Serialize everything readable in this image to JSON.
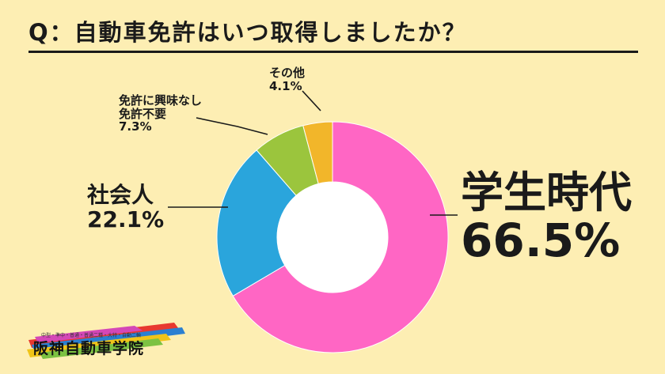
{
  "title": "Q：自動車免許はいつ取得しましたか？",
  "colors": {
    "background": "#fdeeb3",
    "学生時代": "#ff66c4",
    "社会人": "#2aa5dc",
    "免許に興味なし免許不要": "#9bc53d",
    "その他": "#f2b62a"
  },
  "chart_data": {
    "type": "pie",
    "style": "donut",
    "title": "Q：自動車免許はいつ取得しましたか？",
    "categories": [
      "学生時代",
      "社会人",
      "免許に興味なし 免許不要",
      "その他"
    ],
    "values": [
      66.5,
      22.1,
      7.3,
      4.1
    ],
    "start": "top",
    "direction": "clockwise"
  },
  "labels": {
    "gakusei_name": "学生時代",
    "gakusei_pct": "66.5%",
    "shakaijin_name": "社会人",
    "shakaijin_pct": "22.1%",
    "nointerest_line1": "免許に興味なし",
    "nointerest_line2": "免許不要",
    "nointerest_pct": "7.3%",
    "other_name": "その他",
    "other_pct": "4.1%"
  },
  "logo": {
    "tagline": "中型・準中・普通・普通二種・大特・自動二輪",
    "name": "阪神自動車学院"
  }
}
